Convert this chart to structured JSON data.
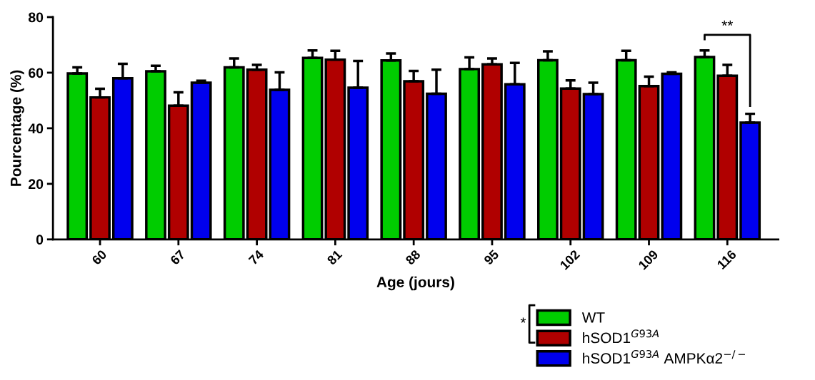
{
  "chart_data": {
    "type": "bar",
    "xlabel": "Age (jours)",
    "ylabel": "Pourcentage (%)",
    "categories": [
      "60",
      "67",
      "74",
      "81",
      "88",
      "95",
      "102",
      "109",
      "116"
    ],
    "ylim": [
      0,
      80
    ],
    "yticks": [
      0,
      20,
      40,
      60,
      80
    ],
    "grid": false,
    "legend": "bottom right",
    "series": [
      {
        "name": "WT",
        "color": "#00cc00",
        "values": [
          59.7,
          60.5,
          61.9,
          65.3,
          64.4,
          61.3,
          64.5,
          64.5,
          65.6
        ],
        "errors": [
          [
            59.7,
            61.9
          ],
          [
            60.5,
            62.5
          ],
          [
            61.9,
            65.1
          ],
          [
            65.3,
            68.0
          ],
          [
            64.4,
            66.9
          ],
          [
            61.3,
            65.5
          ],
          [
            64.5,
            67.7
          ],
          [
            64.5,
            67.9
          ],
          [
            65.6,
            68.0
          ]
        ]
      },
      {
        "name": "hSOD1$^{G93A}$",
        "color": "#b00000",
        "values": [
          51.1,
          48.1,
          61.1,
          64.7,
          56.9,
          63.0,
          54.3,
          55.2,
          58.9
        ],
        "errors": [
          [
            51.1,
            54.2
          ],
          [
            48.1,
            52.9
          ],
          [
            61.1,
            62.8
          ],
          [
            64.7,
            67.9
          ],
          [
            56.9,
            60.6
          ],
          [
            63.0,
            65.1
          ],
          [
            54.3,
            57.2
          ],
          [
            55.2,
            58.6
          ],
          [
            58.9,
            62.8
          ]
        ]
      },
      {
        "name": "hSOD1$^{G93A}$ AMPKα2$^{−/−}$",
        "color": "#0000ee",
        "values": [
          58.0,
          56.4,
          53.8,
          54.6,
          52.4,
          55.8,
          52.3,
          59.6,
          42.0
        ],
        "errors": [
          [
            58.0,
            63.2
          ],
          [
            56.4,
            57.1
          ],
          [
            53.8,
            60.1
          ],
          [
            54.6,
            64.2
          ],
          [
            52.4,
            61.1
          ],
          [
            55.8,
            63.5
          ],
          [
            52.3,
            56.4
          ],
          [
            59.6,
            60.1
          ],
          [
            42.0,
            45.2
          ]
        ]
      }
    ],
    "annotations": [
      "**",
      "*"
    ]
  }
}
